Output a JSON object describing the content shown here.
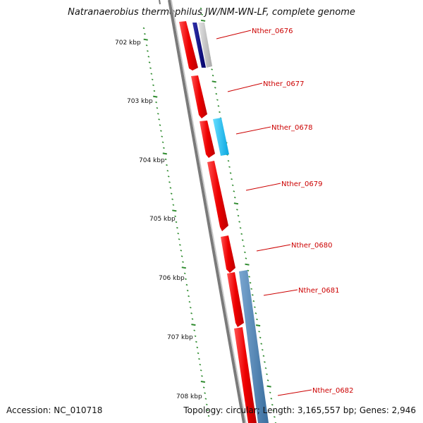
{
  "title": "Natranaerobius thermophilus JW/NM-WN-LF, complete genome",
  "accession_text": "Accession: NC_010718",
  "summary_text": "Topology: circular; Length: 3,165,557 bp; Genes: 2,946",
  "colors": {
    "backbone": "#7a7a7a",
    "tick": "#2e8b2e",
    "label": "#cc0000",
    "forward_gene": "#ee1111",
    "dark_navy": "#0b0b7a",
    "grey_gene": "#bfbfbf",
    "cyan_gene": "#22bbee",
    "steel_blue": "#4a7fb0"
  },
  "scale_labels": [
    "702 kbp",
    "703 kbp",
    "704 kbp",
    "705 kbp",
    "706 kbp",
    "707 kbp",
    "708 kbp"
  ],
  "gene_labels": [
    "Nther_0676",
    "Nther_0677",
    "Nther_0678",
    "Nther_0679",
    "Nther_0680",
    "Nther_0681",
    "Nther_0682"
  ]
}
